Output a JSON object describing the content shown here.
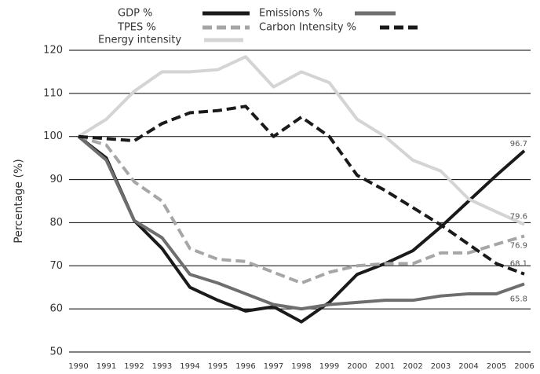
{
  "chart_data": {
    "type": "line",
    "y_label": "Percentage (%)",
    "categories": [
      "1990",
      "1991",
      "1992",
      "1993",
      "1994",
      "1995",
      "1996",
      "1997",
      "1998",
      "1999",
      "2000",
      "2001",
      "2002",
      "2003",
      "2004",
      "2005",
      "2006"
    ],
    "ylim": [
      50,
      120
    ],
    "yticks": [
      50,
      60,
      70,
      80,
      90,
      100,
      110,
      120
    ],
    "grid": true,
    "series": [
      {
        "name": "GDP %",
        "color": "#1a1a1a",
        "dash": "solid",
        "values": [
          100,
          95,
          80.5,
          74,
          65,
          62,
          59.5,
          60.5,
          57,
          61.5,
          68,
          70.5,
          73.5,
          79,
          85,
          91,
          96.7
        ]
      },
      {
        "name": "TPES %",
        "color": "#a6a6a6",
        "dash": "dashed",
        "values": [
          100,
          98,
          89.5,
          85,
          74,
          71.5,
          71,
          68.5,
          66,
          68.5,
          70,
          70.5,
          70.5,
          73,
          73,
          75,
          76.9
        ]
      },
      {
        "name": "Energy intensity",
        "color": "#d4d4d4",
        "dash": "solid",
        "values": [
          100,
          104,
          110.5,
          115,
          115,
          115.5,
          118.5,
          111.5,
          115,
          112.5,
          104,
          100,
          94.5,
          92,
          85.5,
          82.5,
          79.6
        ]
      },
      {
        "name": "Emissions %",
        "color": "#6e6e6e",
        "dash": "solid",
        "values": [
          100,
          94.5,
          80.5,
          76.5,
          68,
          66,
          63.5,
          61,
          60,
          61,
          61.5,
          62,
          62,
          63,
          63.5,
          63.5,
          65.8
        ]
      },
      {
        "name": "Carbon Intensity %",
        "color": "#1a1a1a",
        "dash": "dashed",
        "values": [
          100,
          99.5,
          99,
          103,
          105.5,
          106,
          107,
          100,
          104.5,
          100,
          91,
          87.5,
          83.5,
          79.5,
          75,
          70.5,
          68.1
        ]
      }
    ]
  }
}
